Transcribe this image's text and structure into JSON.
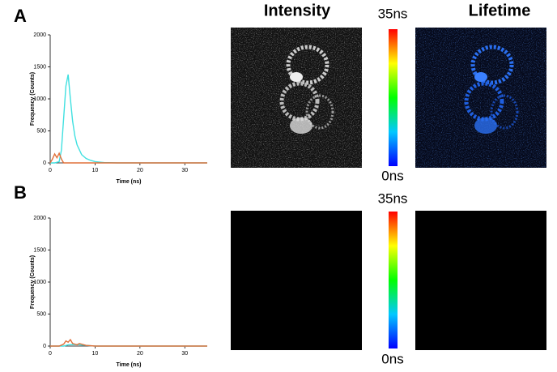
{
  "panels": [
    {
      "label": "A"
    },
    {
      "label": "B"
    }
  ],
  "headers": {
    "intensity": "Intensity",
    "lifetime": "Lifetime"
  },
  "colorbars": [
    {
      "max_label": "35ns",
      "min_label": "0ns"
    },
    {
      "max_label": "35ns",
      "min_label": "0ns"
    }
  ],
  "chart_data": [
    {
      "type": "line",
      "xlabel": "Time (ns)",
      "ylabel": "Frequency (Counts)",
      "xlim": [
        0,
        35
      ],
      "ylim": [
        0,
        2000
      ],
      "xticks": [
        0,
        10,
        20,
        30
      ],
      "yticks": [
        0,
        500,
        1000,
        1500,
        2000
      ],
      "series": [
        {
          "color": "#40e0e0",
          "x": [
            0,
            1,
            2,
            2.5,
            3,
            3.5,
            4,
            4.5,
            5,
            5.5,
            6,
            7,
            8,
            9,
            10,
            12,
            15,
            35
          ],
          "values": [
            0,
            0,
            20,
            200,
            700,
            1200,
            1380,
            1000,
            650,
            420,
            280,
            130,
            70,
            40,
            20,
            5,
            0,
            0
          ]
        },
        {
          "color": "#e0703a",
          "x": [
            0,
            0.5,
            1,
            1.5,
            2,
            2.5,
            3,
            3.5,
            35
          ],
          "values": [
            0,
            60,
            140,
            80,
            150,
            60,
            0,
            0,
            0
          ]
        }
      ]
    },
    {
      "type": "line",
      "xlabel": "Time (ns)",
      "ylabel": "Frequency (Counts)",
      "xlim": [
        0,
        35
      ],
      "ylim": [
        0,
        2000
      ],
      "xticks": [
        0,
        10,
        20,
        30
      ],
      "yticks": [
        0,
        500,
        1000,
        1500,
        2000
      ],
      "series": [
        {
          "color": "#40e0e0",
          "x": [
            0,
            3,
            4,
            6,
            8,
            10,
            35
          ],
          "values": [
            0,
            0,
            20,
            25,
            10,
            0,
            0
          ]
        },
        {
          "color": "#e0703a",
          "x": [
            0,
            2,
            3,
            3.5,
            4,
            4.5,
            5,
            5.5,
            6,
            6.5,
            7,
            8,
            10,
            35
          ],
          "values": [
            0,
            0,
            30,
            80,
            60,
            100,
            40,
            30,
            20,
            40,
            30,
            10,
            0,
            0
          ]
        }
      ]
    }
  ]
}
